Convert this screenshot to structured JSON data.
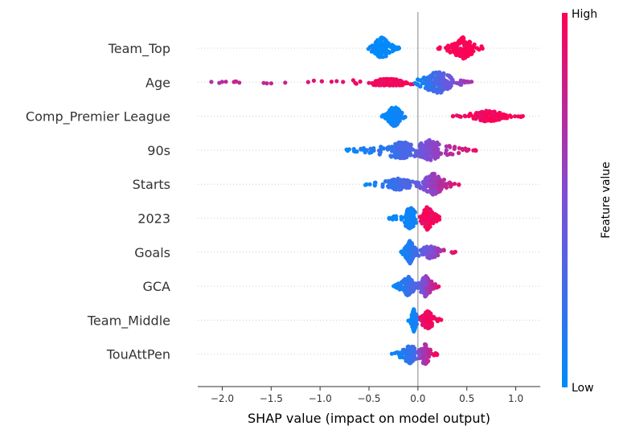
{
  "chart_data": {
    "type": "scatter",
    "subtype": "shap-beeswarm",
    "title": "",
    "xlabel": "SHAP value (impact on model output)",
    "xlim": [
      -2.25,
      1.25
    ],
    "xticks": [
      "−2.0",
      "−1.5",
      "−1.0",
      "−0.5",
      "0.0",
      "0.5",
      "1.0"
    ],
    "xtick_values": [
      -2.0,
      -1.5,
      -1.0,
      -0.5,
      0.0,
      0.5,
      1.0
    ],
    "grid": false,
    "features": [
      {
        "name": "Team_Top",
        "clusters": [
          {
            "center": -0.37,
            "min": -0.55,
            "max": -0.19,
            "density": 1.0,
            "n": 140,
            "color": [
              0.0,
              0.0
            ]
          },
          {
            "center": 0.46,
            "min": 0.19,
            "max": 0.68,
            "density": 0.9,
            "n": 120,
            "color": [
              1.0,
              1.0
            ]
          }
        ]
      },
      {
        "name": "Age",
        "clusters": [
          {
            "center": -0.3,
            "min": -2.12,
            "max": -0.01,
            "density": 0.22,
            "n": 170,
            "color": [
              0.72,
              0.98
            ]
          },
          {
            "center": 0.2,
            "min": -0.03,
            "max": 0.55,
            "density": 1.0,
            "n": 160,
            "color": [
              0.0,
              0.72
            ]
          }
        ]
      },
      {
        "name": "Comp_Premier League",
        "clusters": [
          {
            "center": -0.24,
            "min": -0.37,
            "max": -0.11,
            "density": 1.0,
            "n": 120,
            "color": [
              0.0,
              0.1
            ]
          },
          {
            "center": 0.72,
            "min": 0.34,
            "max": 1.08,
            "density": 0.45,
            "n": 130,
            "color": [
              0.92,
              1.0
            ]
          }
        ]
      },
      {
        "name": "90s",
        "clusters": [
          {
            "center": -0.17,
            "min": -0.74,
            "max": -0.01,
            "density": 0.7,
            "n": 160,
            "color": [
              0.0,
              0.35
            ]
          },
          {
            "center": 0.12,
            "min": -0.05,
            "max": 0.6,
            "density": 0.9,
            "n": 170,
            "color": [
              0.35,
              0.98
            ]
          }
        ]
      },
      {
        "name": "Starts",
        "clusters": [
          {
            "center": -0.2,
            "min": -0.55,
            "max": 0.0,
            "density": 0.45,
            "n": 130,
            "color": [
              0.0,
              0.4
            ]
          },
          {
            "center": 0.16,
            "min": 0.0,
            "max": 0.42,
            "density": 0.9,
            "n": 140,
            "color": [
              0.4,
              0.95
            ]
          }
        ]
      },
      {
        "name": "2023",
        "clusters": [
          {
            "center": -0.08,
            "min": -0.3,
            "max": -0.01,
            "density": 0.9,
            "n": 120,
            "color": [
              0.0,
              0.08
            ]
          },
          {
            "center": 0.1,
            "min": 0.02,
            "max": 0.25,
            "density": 1.0,
            "n": 120,
            "color": [
              0.92,
              1.0
            ]
          }
        ]
      },
      {
        "name": "Goals",
        "clusters": [
          {
            "center": -0.08,
            "min": -0.18,
            "max": 0.0,
            "density": 1.0,
            "n": 130,
            "color": [
              0.0,
              0.3
            ]
          },
          {
            "center": 0.12,
            "min": 0.0,
            "max": 0.42,
            "density": 0.5,
            "n": 100,
            "color": [
              0.3,
              1.0
            ]
          }
        ]
      },
      {
        "name": "GCA",
        "clusters": [
          {
            "center": -0.1,
            "min": -0.26,
            "max": 0.0,
            "density": 0.8,
            "n": 120,
            "color": [
              0.0,
              0.35
            ]
          },
          {
            "center": 0.08,
            "min": 0.0,
            "max": 0.22,
            "density": 0.9,
            "n": 120,
            "color": [
              0.35,
              0.95
            ]
          }
        ]
      },
      {
        "name": "Team_Middle",
        "clusters": [
          {
            "center": -0.04,
            "min": -0.1,
            "max": -0.01,
            "density": 1.0,
            "n": 70,
            "color": [
              0.0,
              0.08
            ]
          },
          {
            "center": 0.1,
            "min": 0.02,
            "max": 0.24,
            "density": 0.8,
            "n": 90,
            "color": [
              0.92,
              1.0
            ]
          }
        ]
      },
      {
        "name": "TouAttPen",
        "clusters": [
          {
            "center": -0.08,
            "min": -0.27,
            "max": 0.0,
            "density": 0.8,
            "n": 110,
            "color": [
              0.0,
              0.3
            ]
          },
          {
            "center": 0.07,
            "min": 0.0,
            "max": 0.2,
            "density": 0.9,
            "n": 100,
            "color": [
              0.5,
              1.0
            ]
          }
        ]
      }
    ],
    "colorbar": {
      "label": "Feature value",
      "high": "High",
      "low": "Low",
      "low_color": "#008bfb",
      "mid_color": "#7c4fd8",
      "high_color": "#ff0052"
    }
  }
}
